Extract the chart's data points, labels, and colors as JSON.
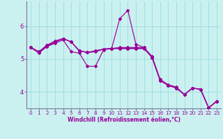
{
  "xlabel": "Windchill (Refroidissement éolien,°C)",
  "background_color": "#caf0f0",
  "line_color": "#990099",
  "grid_color": "#99dddd",
  "axis_color": "#777799",
  "xlim": [
    -0.5,
    23.5
  ],
  "ylim": [
    3.5,
    6.75
  ],
  "yticks": [
    4,
    5,
    6
  ],
  "xticks": [
    0,
    1,
    2,
    3,
    4,
    5,
    6,
    7,
    8,
    9,
    10,
    11,
    12,
    13,
    14,
    15,
    16,
    17,
    18,
    19,
    20,
    21,
    22,
    23
  ],
  "series": [
    {
      "x": [
        0,
        1,
        2,
        3,
        4,
        5,
        6,
        7,
        8,
        9,
        10,
        11,
        12,
        13,
        14,
        15,
        16,
        17,
        18,
        19,
        20,
        21,
        22,
        23
      ],
      "y": [
        5.35,
        5.18,
        5.38,
        5.48,
        5.58,
        5.22,
        5.18,
        4.78,
        4.78,
        5.28,
        5.32,
        6.22,
        6.48,
        5.45,
        5.35,
        5.08,
        4.38,
        4.22,
        4.15,
        3.92,
        4.12,
        4.08,
        3.52,
        3.72
      ]
    },
    {
      "x": [
        0,
        1,
        2,
        3,
        4,
        5,
        6,
        7,
        8,
        9,
        10,
        11,
        12,
        13,
        14,
        15,
        16,
        17,
        18,
        19,
        20,
        21,
        22,
        23
      ],
      "y": [
        5.35,
        5.22,
        5.38,
        5.52,
        5.62,
        5.52,
        5.25,
        5.2,
        5.22,
        5.3,
        5.32,
        5.32,
        5.32,
        5.32,
        5.32,
        5.05,
        4.35,
        4.2,
        4.12,
        3.92,
        4.12,
        4.08,
        3.52,
        3.72
      ]
    },
    {
      "x": [
        0,
        1,
        2,
        3,
        4,
        5,
        6,
        7,
        8,
        9,
        10,
        11,
        12,
        13,
        14,
        15,
        16,
        17,
        18,
        19,
        20,
        21,
        22,
        23
      ],
      "y": [
        5.35,
        5.22,
        5.42,
        5.55,
        5.62,
        5.52,
        5.25,
        5.2,
        5.25,
        5.3,
        5.32,
        5.35,
        5.35,
        5.35,
        5.35,
        5.05,
        4.35,
        4.2,
        4.12,
        3.92,
        4.12,
        4.08,
        3.52,
        3.72
      ]
    },
    {
      "x": [
        0,
        1,
        2,
        3,
        4,
        5,
        6,
        7,
        8,
        9,
        10,
        11,
        12,
        13,
        14,
        15,
        16,
        17,
        18,
        19,
        20,
        21,
        22,
        23
      ],
      "y": [
        5.35,
        5.22,
        5.42,
        5.52,
        5.62,
        5.52,
        5.25,
        5.2,
        5.25,
        5.3,
        5.32,
        5.32,
        5.32,
        5.32,
        5.32,
        5.05,
        4.35,
        4.2,
        4.12,
        3.92,
        4.12,
        4.08,
        3.52,
        3.72
      ]
    }
  ]
}
